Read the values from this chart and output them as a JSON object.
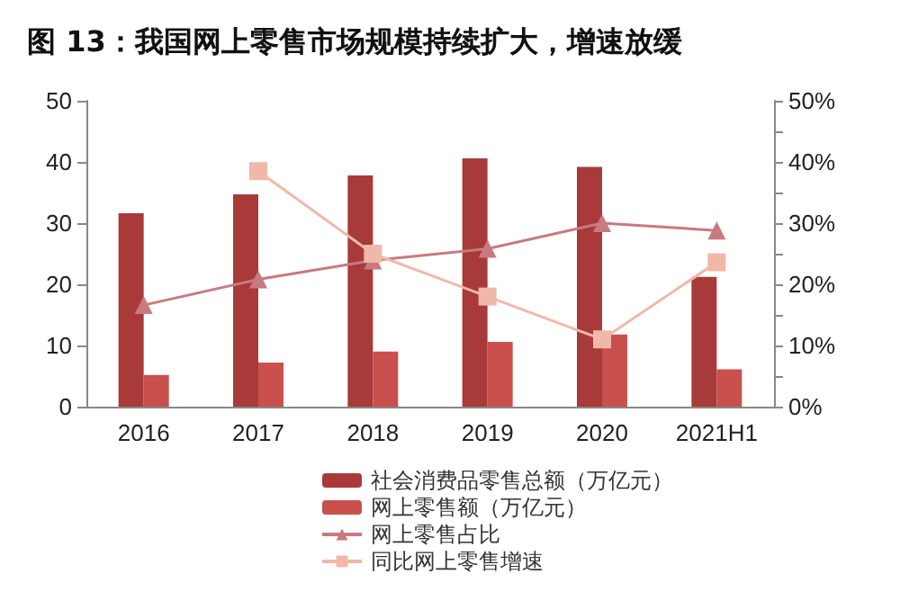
{
  "chart_data": {
    "type": "bar",
    "title": "图 13：我国网上零售市场规模持续扩大，增速放缓",
    "categories": [
      "2016",
      "2017",
      "2018",
      "2019",
      "2020",
      "2021H1"
    ],
    "series": [
      {
        "name": "社会消费品零售总额（万亿元）",
        "color": "#a83a3a",
        "values": [
          31.6,
          34.7,
          37.8,
          40.6,
          39.2,
          21.2
        ]
      },
      {
        "name": "网上零售额（万亿元）",
        "color": "#c9504c",
        "values": [
          5.2,
          7.2,
          9.0,
          10.6,
          11.8,
          6.1
        ]
      },
      {
        "name": "网上零售占比",
        "type": "line",
        "axis": "y2",
        "marker": "triangle",
        "color": "#c87a80",
        "values": [
          16.6,
          20.8,
          23.9,
          25.8,
          30.0,
          28.8
        ]
      },
      {
        "name": "同比网上零售增速",
        "type": "line",
        "axis": "y2",
        "marker": "square",
        "color": "#f0b8a8",
        "values": [
          null,
          38.5,
          25.0,
          18.0,
          11.0,
          23.6
        ]
      }
    ],
    "ylim": [
      0,
      50
    ],
    "yticks": [
      0,
      10,
      20,
      30,
      40,
      50
    ],
    "y2lim": [
      0,
      50
    ],
    "y2ticks": [
      {
        "value": 0,
        "label": "0%"
      },
      {
        "value": 5,
        "label": null
      },
      {
        "value": 10,
        "label": "10%"
      },
      {
        "value": 15,
        "label": null
      },
      {
        "value": 20,
        "label": "20%"
      },
      {
        "value": 25,
        "label": null
      },
      {
        "value": 30,
        "label": "30%"
      },
      {
        "value": 35,
        "label": null
      },
      {
        "value": 40,
        "label": "40%"
      },
      {
        "value": 45,
        "label": null
      },
      {
        "value": 50,
        "label": "50%"
      }
    ],
    "grid": false,
    "legend": "bottom"
  }
}
